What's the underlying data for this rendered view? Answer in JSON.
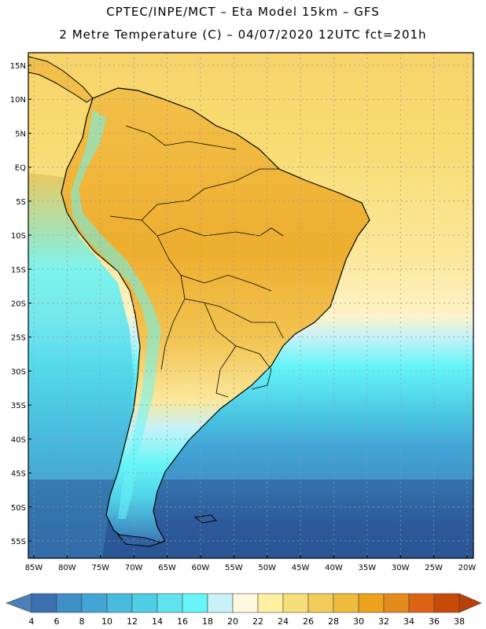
{
  "header": {
    "line1": "CPTEC/INPE/MCT –  Eta Model 15km – GFS",
    "line2": "2 Metre Temperature (C) – 04/07/2020 12UTC fct=201h"
  },
  "map": {
    "lat_labels": [
      "15N",
      "10N",
      "5N",
      "EQ",
      "5S",
      "10S",
      "15S",
      "20S",
      "25S",
      "30S",
      "35S",
      "40S",
      "45S",
      "50S",
      "55S"
    ],
    "lon_labels": [
      "85W",
      "80W",
      "75W",
      "70W",
      "65W",
      "60W",
      "55W",
      "50W",
      "45W",
      "40W",
      "35W",
      "30W",
      "25W",
      "20W"
    ],
    "lat_values": [
      15,
      10,
      5,
      0,
      -5,
      -10,
      -15,
      -20,
      -25,
      -30,
      -35,
      -40,
      -45,
      -50,
      -55
    ],
    "lon_values": [
      -85,
      -80,
      -75,
      -70,
      -65,
      -60,
      -55,
      -50,
      -45,
      -40,
      -35,
      -30,
      -25,
      -20
    ]
  },
  "colorbar": {
    "labels": [
      "4",
      "6",
      "8",
      "10",
      "12",
      "14",
      "16",
      "18",
      "20",
      "22",
      "24",
      "26",
      "28",
      "30",
      "32",
      "34",
      "36",
      "38"
    ],
    "colors": [
      "#4a7fb8",
      "#3a6fb0",
      "#3f8fc7",
      "#42a5d6",
      "#48bbe0",
      "#4ecfe6",
      "#5ee3ef",
      "#66f5f8",
      "#c8f2f8",
      "#fff8e0",
      "#fdf0a0",
      "#f8de78",
      "#f2cc58",
      "#eebb3e",
      "#eba31e",
      "#e4891c",
      "#dc6314",
      "#c84a08",
      "#b8400a"
    ]
  }
}
